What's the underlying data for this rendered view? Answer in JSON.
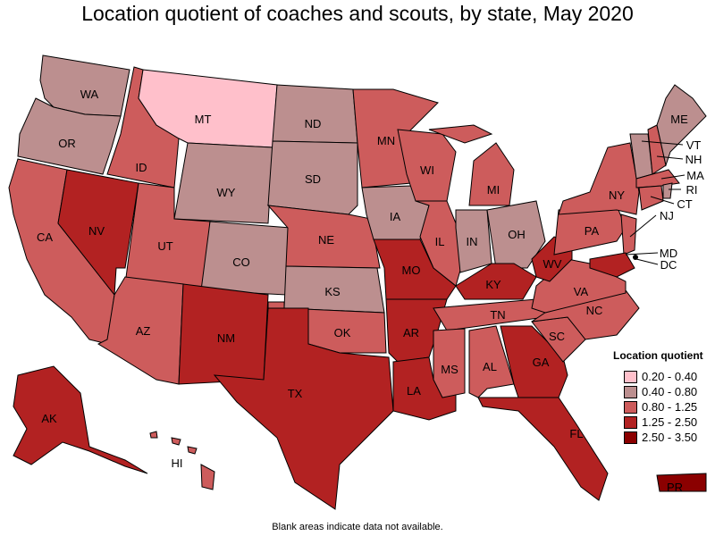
{
  "title": "Location quotient of coaches and scouts, by state, May 2020",
  "note": "Blank areas indicate data not available.",
  "legend": {
    "title": "Location quotient",
    "bins": [
      {
        "label": "0.20 - 0.40",
        "color": "#FFC0CB"
      },
      {
        "label": "0.40 - 0.80",
        "color": "#BC8F8F"
      },
      {
        "label": "0.80 - 1.25",
        "color": "#CD5C5C"
      },
      {
        "label": "1.25 - 2.50",
        "color": "#B22222"
      },
      {
        "label": "2.50 - 3.50",
        "color": "#8B0000"
      }
    ]
  },
  "states": {
    "WA": 1,
    "OR": 1,
    "CA": 2,
    "NV": 3,
    "ID": 2,
    "MT": 0,
    "WY": 1,
    "UT": 2,
    "AZ": 2,
    "CO": 1,
    "NM": 3,
    "ND": 1,
    "SD": 1,
    "NE": 2,
    "KS": 1,
    "OK": 2,
    "TX": 3,
    "MN": 2,
    "IA": 1,
    "MO": 3,
    "AR": 3,
    "LA": 3,
    "WI": 2,
    "IL": 2,
    "MI": 2,
    "IN": 1,
    "OH": 1,
    "KY": 3,
    "TN": 2,
    "MS": 2,
    "AL": 2,
    "GA": 3,
    "FL": 3,
    "SC": 2,
    "NC": 2,
    "VA": 2,
    "WV": 3,
    "PA": 2,
    "NY": 2,
    "NJ": 2,
    "MD": 3,
    "CT": 2,
    "RI": 1,
    "MA": 2,
    "VT": 1,
    "NH": 2,
    "ME": 1,
    "AK": 3,
    "HI": 2,
    "PR": 4,
    "DC": null
  }
}
